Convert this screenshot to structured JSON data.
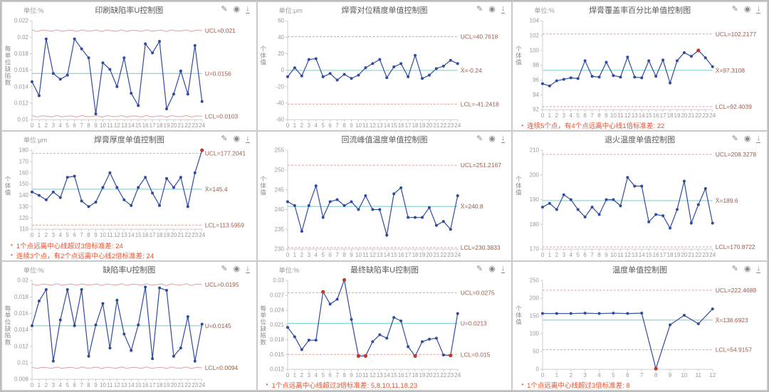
{
  "ui": {
    "bullet": "•",
    "icons": [
      {
        "name": "edit",
        "glyph": "✎"
      },
      {
        "name": "view",
        "glyph": "◉"
      },
      {
        "name": "download",
        "glyph": "↓"
      }
    ],
    "colors": {
      "line": "#2f4b9e",
      "marker_alert": "#c0392b",
      "limit_line": "#e29e9e",
      "center_line": "#6fc9c9",
      "label": "#9a5c4a",
      "axis": "#cccccc",
      "tick_text": "#999999",
      "annotation": "#e4502e"
    }
  },
  "chart_data": [
    {
      "type": "line",
      "title": "印刷缺陷率U控制图",
      "unit": "单位:%",
      "ylabel": "每单位缺陷数",
      "ucl": 0.0208,
      "ucl_label": "UCL=0.021",
      "center": 0.0156,
      "center_label": "U=0.0156",
      "lcl": 0.0104,
      "lcl_label": "LCL=0.0103",
      "wavy_limits": true,
      "ylim": [
        0.01,
        0.022
      ],
      "yticks": [
        0.022,
        0.02,
        0.018,
        0.016,
        0.014,
        0.012,
        0.01
      ],
      "x": [
        0,
        1,
        2,
        3,
        4,
        5,
        6,
        7,
        8,
        9,
        10,
        11,
        12,
        13,
        14,
        15,
        16,
        17,
        18,
        19,
        20,
        21,
        22,
        23,
        24
      ],
      "values": [
        0.0146,
        0.0129,
        0.0198,
        0.0156,
        0.0149,
        0.0154,
        0.0198,
        0.0186,
        0.0175,
        0.0107,
        0.0169,
        0.0161,
        0.014,
        0.0175,
        0.0132,
        0.0117,
        0.0192,
        0.0181,
        0.0195,
        0.0113,
        0.0131,
        0.0159,
        0.0131,
        0.019,
        0.0122
      ],
      "alert_points": [],
      "annotations": []
    },
    {
      "type": "line",
      "title": "焊膏对位精度单值控制图",
      "unit": "单位:μm",
      "ylabel": "个体值",
      "ucl": 40.7618,
      "ucl_label": "UCL=40.7618",
      "center": -0.24,
      "center_label": "X̄=-0.24",
      "lcl": -41.2418,
      "lcl_label": "LCL=-41.2418",
      "wavy_limits": false,
      "ylim": [
        -60,
        60
      ],
      "yticks": [
        60,
        40,
        20,
        0,
        -20,
        -40,
        -60
      ],
      "x": [
        0,
        1,
        2,
        3,
        4,
        5,
        6,
        7,
        8,
        9,
        10,
        11,
        12,
        13,
        14,
        15,
        16,
        17,
        18,
        19,
        20,
        21,
        22,
        23,
        24
      ],
      "values": [
        -8,
        3,
        -7,
        13,
        14,
        -8,
        -4,
        -12,
        -5,
        -10,
        -6,
        3,
        8,
        13,
        -9,
        4,
        8,
        -8,
        18,
        -10,
        -6,
        2,
        5,
        12,
        8
      ],
      "alert_points": [],
      "annotations": []
    },
    {
      "type": "line",
      "title": "焊膏覆盖率百分比单值控制图",
      "unit": "单位:%",
      "ylabel": "个体值",
      "ucl": 102.2177,
      "ucl_label": "UCL=102.2177",
      "center": 97.3108,
      "center_label": "X̄=97.3108",
      "lcl": 92.4039,
      "lcl_label": "LCL=92.4039",
      "wavy_limits": false,
      "ylim": [
        92,
        104
      ],
      "yticks": [
        104,
        102,
        100,
        98,
        96,
        94,
        92
      ],
      "x": [
        0,
        1,
        2,
        3,
        4,
        5,
        6,
        7,
        8,
        9,
        10,
        11,
        12,
        13,
        14,
        15,
        16,
        17,
        18,
        19,
        20,
        21,
        22,
        23,
        24
      ],
      "values": [
        95.5,
        95.2,
        95.9,
        96.1,
        96.3,
        96.2,
        98.6,
        96.5,
        96.4,
        98.4,
        96.6,
        96.4,
        99.1,
        96.4,
        96.3,
        98.6,
        96.5,
        98.7,
        95.6,
        98.6,
        99.7,
        99.2,
        100.0,
        99.0,
        97.8
      ],
      "alert_points": [
        22
      ],
      "annotations": [
        "连续5个点，有4个点远离中心线1倍标准差: 22"
      ]
    },
    {
      "type": "line",
      "title": "焊膏厚度单值控制图",
      "unit": "单位:μm",
      "ylabel": "个体值",
      "ucl": 177.2041,
      "ucl_label": "UCL=177.2041",
      "center": 145.4,
      "center_label": "X̄=145.4",
      "lcl": 113.5959,
      "lcl_label": "LCL=113.5959",
      "wavy_limits": false,
      "ylim": [
        110,
        180
      ],
      "yticks": [
        180,
        170,
        160,
        150,
        140,
        130,
        120,
        110
      ],
      "x": [
        0,
        1,
        2,
        3,
        4,
        5,
        6,
        7,
        8,
        9,
        10,
        11,
        12,
        13,
        14,
        15,
        16,
        17,
        18,
        19,
        20,
        21,
        22,
        23,
        24
      ],
      "values": [
        143,
        140,
        136,
        143,
        138,
        156,
        157,
        135,
        130,
        134,
        147,
        160,
        147,
        136,
        131,
        147,
        156,
        142,
        131,
        155,
        147,
        156,
        130,
        160,
        180
      ],
      "alert_points": [
        24
      ],
      "annotations": [
        "1个点远离中心线超过3倍标准差: 24",
        "连续3个点，有2个点远离中心线2倍标准差: 24"
      ]
    },
    {
      "type": "line",
      "title": "回流峰值温度单值控制图",
      "unit": "",
      "ylabel": "个体值",
      "ucl": 251.2167,
      "ucl_label": "UCL=251.2167",
      "center": 240.8,
      "center_label": "X̄=240.8",
      "lcl": 230.3833,
      "lcl_label": "LCL=230.3833",
      "wavy_limits": false,
      "ylim": [
        230,
        255
      ],
      "yticks": [
        255,
        250,
        245,
        240,
        235,
        230
      ],
      "x": [
        0,
        1,
        2,
        3,
        4,
        5,
        6,
        7,
        8,
        9,
        10,
        11,
        12,
        13,
        14,
        15,
        16,
        17,
        18,
        19,
        20,
        21,
        22,
        23,
        24
      ],
      "values": [
        242,
        241,
        234.5,
        241,
        246,
        238,
        242,
        242.5,
        241,
        242,
        240,
        243.5,
        240,
        240,
        233.5,
        244,
        245.5,
        238,
        238,
        238,
        240.5,
        236,
        237,
        235,
        243.5
      ],
      "alert_points": [],
      "annotations": []
    },
    {
      "type": "line",
      "title": "退火温度单值控制图",
      "unit": "",
      "ylabel": "个体值",
      "ucl": 208.3278,
      "ucl_label": "UCL=208.3278",
      "center": 189.6,
      "center_label": "X̄=189.6",
      "lcl": 170.8722,
      "lcl_label": "LCL=170.8722",
      "wavy_limits": false,
      "ylim": [
        170,
        210
      ],
      "yticks": [
        210,
        200,
        190,
        180,
        170
      ],
      "x": [
        0,
        1,
        2,
        3,
        4,
        5,
        6,
        7,
        8,
        9,
        10,
        11,
        12,
        13,
        14,
        15,
        16,
        17,
        18,
        19,
        20,
        21,
        22,
        23,
        24
      ],
      "values": [
        187,
        188.5,
        186,
        192,
        190,
        186,
        183,
        187,
        184,
        190,
        190,
        187.5,
        199,
        195.5,
        195.5,
        181,
        184,
        183.5,
        178.5,
        186,
        197.5,
        180.5,
        188,
        194.5,
        180.5
      ],
      "alert_points": [],
      "annotations": []
    },
    {
      "type": "line",
      "title": "缺陷率U控制图",
      "unit": "单位:%",
      "ylabel": "每单位缺陷数",
      "ucl": 0.0195,
      "ucl_label": "UCL=0.0195",
      "center": 0.0145,
      "center_label": "U=0.0145",
      "lcl": 0.0094,
      "lcl_label": "LCL=0.0094",
      "wavy_limits": true,
      "ylim": [
        0.008,
        0.02
      ],
      "yticks": [
        0.02,
        0.018,
        0.016,
        0.014,
        0.012,
        0.01,
        0.008
      ],
      "x": [
        0,
        1,
        2,
        3,
        4,
        5,
        6,
        7,
        8,
        9,
        10,
        11,
        12,
        13,
        14,
        15,
        16,
        17,
        18,
        19,
        20,
        21,
        22,
        23,
        24
      ],
      "values": [
        0.0145,
        0.0175,
        0.0189,
        0.0102,
        0.0152,
        0.0189,
        0.0145,
        0.0189,
        0.0108,
        0.0146,
        0.0172,
        0.0118,
        0.0176,
        0.0135,
        0.0115,
        0.0146,
        0.0192,
        0.0105,
        0.0191,
        0.0188,
        0.0108,
        0.0118,
        0.0156,
        0.0102,
        0.0147
      ],
      "alert_points": [],
      "annotations": []
    },
    {
      "type": "line",
      "title": "最终缺陷率U控制图",
      "unit": "单位:%",
      "ylabel": "每单位缺陷数",
      "ucl": 0.0275,
      "ucl_label": "UCL=0.0275",
      "center": 0.0213,
      "center_label": "U=0.0213",
      "lcl": 0.015,
      "lcl_label": "LCL=0.015",
      "wavy_limits": false,
      "ylim": [
        0.012,
        0.03
      ],
      "yticks": [
        0.03,
        0.027,
        0.024,
        0.021,
        0.018,
        0.015,
        0.012
      ],
      "x": [
        0,
        1,
        2,
        3,
        4,
        5,
        6,
        7,
        8,
        9,
        10,
        11,
        12,
        13,
        14,
        15,
        16,
        17,
        18,
        19,
        20,
        21,
        22,
        23,
        24
      ],
      "values": [
        0.0205,
        0.0186,
        0.016,
        0.0179,
        0.0179,
        0.0277,
        0.0252,
        0.0262,
        0.0301,
        0.0221,
        0.0147,
        0.0147,
        0.0176,
        0.019,
        0.0183,
        0.0225,
        0.0218,
        0.0166,
        0.0147,
        0.0176,
        0.0181,
        0.0183,
        0.0149,
        0.0148,
        0.0233
      ],
      "alert_points": [
        5,
        8,
        10,
        11,
        18,
        23
      ],
      "annotations": [
        "1个点远离中心线超过3倍标准差: 5,8,10,11,18,23"
      ]
    },
    {
      "type": "line",
      "title": "温度单值控制图",
      "unit": "",
      "ylabel": "个体值",
      "ucl": 222.4689,
      "ucl_label": "UCL=222.4689",
      "center": 138.6923,
      "center_label": "X̄=138.6923",
      "lcl": 54.9157,
      "lcl_label": "LCL=54.9157",
      "wavy_limits": false,
      "ylim": [
        0,
        250
      ],
      "yticks": [
        250,
        200,
        150,
        100,
        50,
        0
      ],
      "x": [
        0,
        1,
        2,
        3,
        4,
        5,
        6,
        7,
        8,
        9,
        10,
        11,
        12
      ],
      "values": [
        157,
        157,
        157,
        158,
        157,
        158,
        157,
        158,
        2,
        125,
        152,
        128,
        170
      ],
      "alert_points": [
        8
      ],
      "annotations": [
        "1个点远离中心线超过3倍标准差: 8"
      ]
    }
  ]
}
